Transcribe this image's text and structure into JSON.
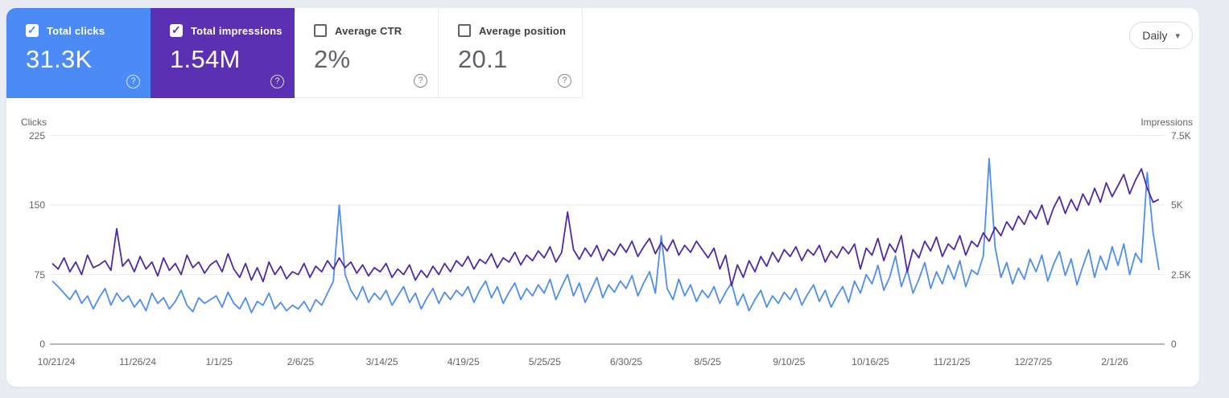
{
  "cards": [
    {
      "label": "Total clicks",
      "value": "31.3K",
      "checked": true,
      "bg": "#4c8bf5"
    },
    {
      "label": "Total impressions",
      "value": "1.54M",
      "checked": true,
      "bg": "#5c30b2"
    },
    {
      "label": "Average CTR",
      "value": "2%",
      "checked": false,
      "bg": "#ffffff"
    },
    {
      "label": "Average position",
      "value": "20.1",
      "checked": false,
      "bg": "#ffffff"
    }
  ],
  "controls": {
    "granularity": "Daily",
    "caret_icon": "▾",
    "help_icon": "?"
  },
  "chart_data": {
    "type": "line",
    "grid": "horizontal-only",
    "left_axis": {
      "label": "Clicks",
      "range": [
        0,
        225
      ],
      "tick_values": [
        225,
        150,
        75,
        0
      ],
      "tick_labels": [
        "225",
        "150",
        "75",
        "0"
      ]
    },
    "right_axis": {
      "label": "Impressions",
      "range": [
        0,
        7500
      ],
      "tick_values": [
        7500,
        5000,
        2500,
        0
      ],
      "tick_labels": [
        "7.5K",
        "5K",
        "2.5K",
        "0"
      ]
    },
    "x_labels": [
      "10/21/24",
      "11/26/24",
      "1/1/25",
      "2/6/25",
      "3/14/25",
      "4/19/25",
      "5/25/25",
      "6/30/25",
      "8/5/25",
      "9/10/25",
      "10/16/25",
      "11/21/25",
      "12/27/25",
      "2/1/26"
    ],
    "colors": {
      "grid": "#e8eaed",
      "baseline": "#9aa0a6"
    },
    "series": [
      {
        "name": "Clicks",
        "axis": "left",
        "color": "#4e8df2",
        "values": [
          68,
          62,
          55,
          48,
          58,
          44,
          52,
          38,
          50,
          60,
          42,
          55,
          46,
          52,
          40,
          48,
          36,
          55,
          44,
          50,
          38,
          46,
          58,
          42,
          35,
          50,
          44,
          48,
          52,
          40,
          56,
          44,
          38,
          50,
          34,
          46,
          42,
          55,
          38,
          45,
          36,
          42,
          38,
          46,
          35,
          48,
          42,
          55,
          68,
          150,
          75,
          58,
          48,
          62,
          45,
          55,
          48,
          58,
          42,
          52,
          62,
          45,
          55,
          38,
          50,
          60,
          44,
          56,
          48,
          58,
          52,
          62,
          45,
          58,
          68,
          50,
          62,
          44,
          56,
          66,
          48,
          60,
          52,
          64,
          55,
          70,
          48,
          62,
          75,
          52,
          66,
          45,
          58,
          72,
          50,
          64,
          56,
          68,
          60,
          74,
          52,
          66,
          78,
          55,
          117,
          60,
          48,
          70,
          52,
          64,
          46,
          58,
          50,
          62,
          44,
          56,
          66,
          42,
          54,
          36,
          48,
          58,
          40,
          52,
          44,
          56,
          48,
          60,
          42,
          54,
          64,
          46,
          58,
          40,
          52,
          62,
          45,
          68,
          55,
          75,
          65,
          85,
          58,
          72,
          95,
          62,
          80,
          55,
          70,
          88,
          60,
          78,
          65,
          85,
          70,
          90,
          62,
          80,
          75,
          95,
          200,
          105,
          72,
          88,
          65,
          82,
          70,
          92,
          78,
          96,
          68,
          86,
          100,
          74,
          92,
          64,
          84,
          102,
          72,
          95,
          80,
          105,
          85,
          108,
          75,
          98,
          88,
          185,
          120,
          80
        ]
      },
      {
        "name": "Impressions",
        "axis": "right",
        "color": "#5128a8",
        "values": [
          2900,
          2700,
          3100,
          2600,
          2950,
          2500,
          3200,
          2750,
          2850,
          3000,
          2650,
          4150,
          2800,
          3050,
          2600,
          3150,
          2700,
          2950,
          2450,
          3100,
          2650,
          2900,
          2500,
          3200,
          2750,
          2950,
          2550,
          2850,
          3000,
          2600,
          3250,
          2700,
          2400,
          2900,
          2300,
          2750,
          2250,
          2950,
          2500,
          2800,
          2350,
          2600,
          2500,
          2900,
          2400,
          2800,
          2600,
          3000,
          2700,
          3100,
          2750,
          2950,
          2550,
          2850,
          2450,
          2750,
          2600,
          2900,
          2400,
          2700,
          2500,
          2850,
          2300,
          2650,
          2400,
          2800,
          2500,
          2900,
          2600,
          3000,
          2800,
          3150,
          2700,
          3050,
          2900,
          3250,
          2750,
          3100,
          2950,
          3300,
          2850,
          3200,
          3000,
          3350,
          3100,
          3500,
          2950,
          3300,
          4750,
          3400,
          3050,
          3450,
          3150,
          3550,
          3000,
          3400,
          3200,
          3600,
          3300,
          3700,
          3150,
          3500,
          3800,
          3250,
          3650,
          3350,
          3750,
          3200,
          3550,
          3300,
          3700,
          3400,
          3100,
          3450,
          2700,
          3200,
          2100,
          2850,
          2400,
          3000,
          2600,
          3150,
          2800,
          3300,
          2950,
          3400,
          3150,
          3500,
          3000,
          3400,
          3200,
          3550,
          2950,
          3350,
          3100,
          3500,
          3250,
          3600,
          2700,
          3450,
          3200,
          3800,
          3000,
          3600,
          3300,
          3900,
          2600,
          3400,
          3100,
          3700,
          3350,
          3850,
          3150,
          3600,
          3400,
          3900,
          3200,
          3700,
          3500,
          4000,
          3700,
          4200,
          3900,
          4400,
          4100,
          4600,
          4300,
          4800,
          4500,
          5000,
          4300,
          4900,
          5300,
          4700,
          5200,
          4800,
          5400,
          5000,
          5600,
          5100,
          5800,
          5300,
          5700,
          6100,
          5400,
          5900,
          6300,
          5600,
          5100,
          5200
        ]
      }
    ]
  }
}
